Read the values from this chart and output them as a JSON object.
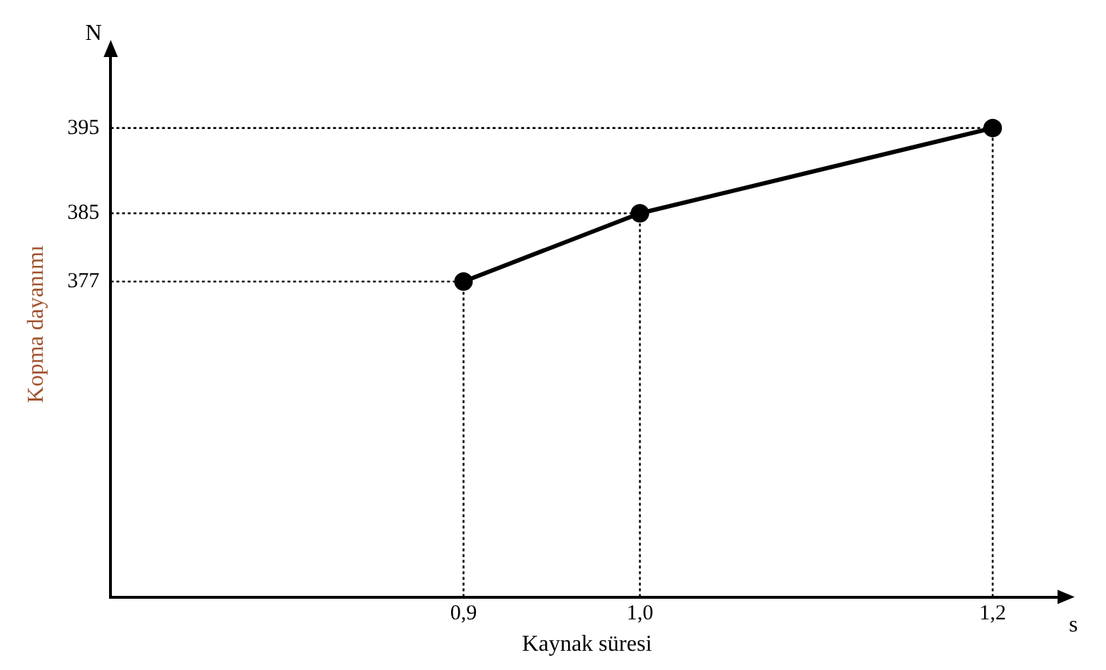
{
  "chart_data": {
    "type": "line",
    "xlabel": "Kaynak süresi",
    "ylabel": "Kopma dayanımı",
    "annotations": [
      "N",
      "s"
    ],
    "x": [
      0.9,
      1.0,
      1.2
    ],
    "series": [
      {
        "color": "#000000",
        "values": [
          377,
          385,
          395
        ]
      }
    ],
    "xlim": [
      0.7,
      1.24
    ],
    "xticks": [
      {
        "value": 0.9,
        "label": "0,9"
      },
      {
        "value": 1.0,
        "label": "1,0"
      },
      {
        "value": 1.2,
        "label": "1,2"
      }
    ],
    "ylim": [
      340,
      404
    ],
    "yticks": [
      377,
      385,
      395
    ],
    "ref_lines": [
      {
        "axis": "x",
        "value": 0.9,
        "line_style": "dotted"
      },
      {
        "axis": "x",
        "value": 1.0,
        "line_style": "dotted"
      },
      {
        "axis": "x",
        "value": 1.2,
        "line_style": "dotted"
      },
      {
        "axis": "y",
        "value": 377,
        "line_style": "dotted"
      },
      {
        "axis": "y",
        "value": 385,
        "line_style": "dotted"
      },
      {
        "axis": "y",
        "value": 395,
        "line_style": "dotted"
      }
    ],
    "grid": false,
    "legend": false,
    "marker": "circle",
    "line_style": "solid"
  }
}
